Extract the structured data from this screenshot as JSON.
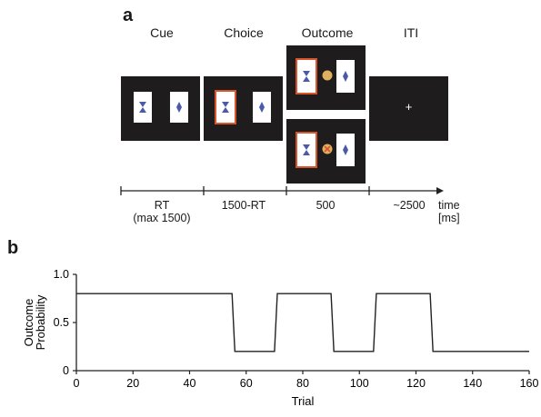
{
  "panel_a": {
    "letter": "a",
    "stages": [
      "Cue",
      "Choice",
      "Outcome",
      "ITI"
    ],
    "timeline": {
      "durations": [
        "RT",
        "1500-RT",
        "500",
        "~2500"
      ],
      "rt_note": "(max 1500)",
      "axis_label": "time",
      "axis_unit": "[ms]"
    },
    "iti_symbol": "+",
    "colors": {
      "screen": "#1e1c1c",
      "selection": "#d9542b",
      "reward": "#e0b060",
      "shape": "#4a5aa8"
    }
  },
  "panel_b": {
    "letter": "b",
    "chart_data": {
      "type": "line",
      "x": [
        0,
        55,
        56,
        70,
        71,
        90,
        91,
        105,
        106,
        125,
        126,
        160
      ],
      "y": [
        0.8,
        0.8,
        0.2,
        0.2,
        0.8,
        0.8,
        0.2,
        0.2,
        0.8,
        0.8,
        0.2,
        0.2
      ],
      "xlabel": "Trial",
      "ylabel_lines": [
        "Outcome",
        "Probability"
      ],
      "xlim": [
        0,
        160
      ],
      "ylim": [
        0,
        1.0
      ],
      "xticks": [
        0,
        20,
        40,
        60,
        80,
        100,
        120,
        140,
        160
      ],
      "yticks": [
        0,
        0.5,
        1.0
      ],
      "ytick_labels": [
        "0",
        "0.5",
        "1.0"
      ],
      "grid": false
    }
  }
}
